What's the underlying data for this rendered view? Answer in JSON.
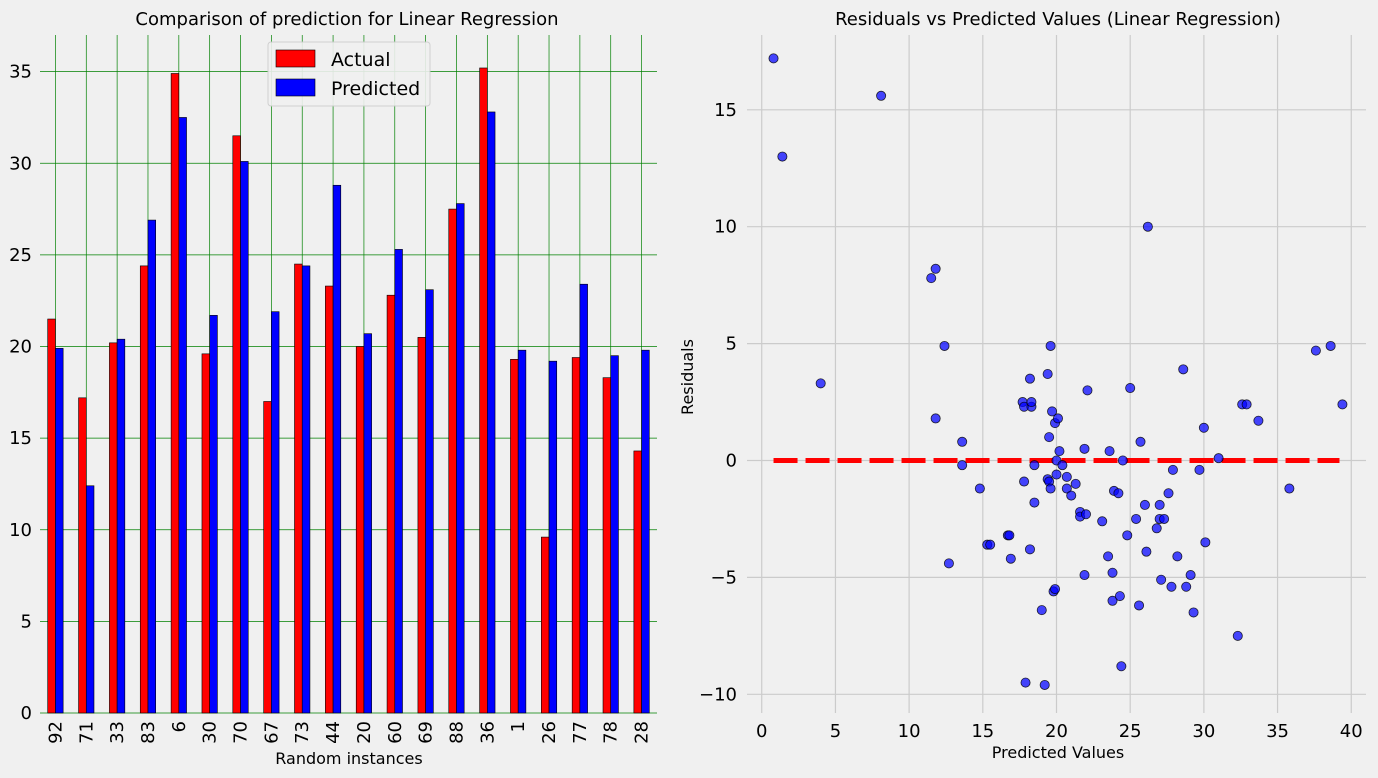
{
  "chart_data": [
    {
      "type": "bar",
      "title": "Comparison of prediction for Linear Regression",
      "xlabel": "Random instances",
      "ylabel": "",
      "categories": [
        "92",
        "71",
        "33",
        "83",
        "6",
        "30",
        "70",
        "67",
        "73",
        "44",
        "20",
        "60",
        "69",
        "88",
        "36",
        "1",
        "26",
        "77",
        "78",
        "28"
      ],
      "series": [
        {
          "name": "Actual",
          "color": "#ff0000",
          "values": [
            21.5,
            17.2,
            20.2,
            24.4,
            34.9,
            19.6,
            31.5,
            17.0,
            24.5,
            23.3,
            20.0,
            22.8,
            20.5,
            27.5,
            35.2,
            19.3,
            9.6,
            19.4,
            18.3,
            14.3
          ]
        },
        {
          "name": "Predicted",
          "color": "#0000ff",
          "values": [
            19.9,
            12.4,
            20.4,
            26.9,
            32.5,
            21.7,
            30.1,
            21.9,
            24.4,
            28.8,
            20.7,
            25.3,
            23.1,
            27.8,
            32.8,
            19.8,
            19.2,
            23.4,
            19.5,
            19.8
          ]
        }
      ],
      "ylim": [
        0,
        37
      ],
      "yticks": [
        0,
        5,
        10,
        15,
        20,
        25,
        30,
        35
      ],
      "grid": true,
      "grid_color": "#008000",
      "legend": "upper center"
    },
    {
      "type": "scatter",
      "title": "Residuals vs Predicted Values (Linear Regression)",
      "xlabel": "Predicted Values",
      "ylabel": "Residuals",
      "xlim": [
        -1,
        41
      ],
      "ylim": [
        -10.8,
        18.2
      ],
      "xticks": [
        0,
        5,
        10,
        15,
        20,
        25,
        30,
        35,
        40
      ],
      "yticks": [
        -10,
        -5,
        0,
        5,
        10,
        15
      ],
      "ytick_labels": [
        "−10",
        "−5",
        "0",
        "5",
        "10",
        "15"
      ],
      "grid": true,
      "point_color": "#0000ff",
      "reference_line": {
        "y": 0,
        "x": [
          0.8,
          39.2
        ],
        "color": "#ff0000",
        "style": "dashed"
      },
      "points": [
        [
          0.8,
          17.2
        ],
        [
          1.4,
          13.0
        ],
        [
          8.1,
          15.6
        ],
        [
          4.0,
          3.3
        ],
        [
          11.5,
          7.8
        ],
        [
          11.8,
          8.2
        ],
        [
          12.4,
          4.9
        ],
        [
          11.8,
          1.8
        ],
        [
          12.7,
          -4.4
        ],
        [
          13.6,
          0.8
        ],
        [
          13.6,
          -0.2
        ],
        [
          14.8,
          -1.2
        ],
        [
          15.3,
          -3.6
        ],
        [
          15.5,
          -3.6
        ],
        [
          16.7,
          -3.2
        ],
        [
          16.9,
          -4.2
        ],
        [
          16.8,
          -3.2
        ],
        [
          17.7,
          2.5
        ],
        [
          17.8,
          2.3
        ],
        [
          17.8,
          -0.9
        ],
        [
          17.9,
          -9.5
        ],
        [
          18.2,
          3.5
        ],
        [
          18.3,
          2.3
        ],
        [
          18.3,
          2.5
        ],
        [
          18.2,
          -3.8
        ],
        [
          18.5,
          -1.8
        ],
        [
          18.5,
          -0.2
        ],
        [
          19.0,
          -6.4
        ],
        [
          19.2,
          -9.6
        ],
        [
          19.4,
          3.7
        ],
        [
          19.5,
          1.0
        ],
        [
          19.4,
          -0.8
        ],
        [
          19.5,
          -0.9
        ],
        [
          19.6,
          -1.2
        ],
        [
          19.6,
          4.9
        ],
        [
          19.7,
          2.1
        ],
        [
          19.8,
          -5.6
        ],
        [
          19.9,
          -5.5
        ],
        [
          19.9,
          1.6
        ],
        [
          20.0,
          -0.6
        ],
        [
          20.1,
          1.8
        ],
        [
          20.0,
          0.0
        ],
        [
          20.2,
          0.4
        ],
        [
          20.4,
          -0.2
        ],
        [
          20.7,
          -0.7
        ],
        [
          20.7,
          -1.2
        ],
        [
          21.0,
          -1.5
        ],
        [
          21.3,
          -1.0
        ],
        [
          21.6,
          -2.2
        ],
        [
          21.6,
          -2.4
        ],
        [
          21.9,
          -4.9
        ],
        [
          21.9,
          0.5
        ],
        [
          22.1,
          3.0
        ],
        [
          22.0,
          -2.3
        ],
        [
          23.1,
          -2.6
        ],
        [
          23.5,
          -4.1
        ],
        [
          23.6,
          0.4
        ],
        [
          23.8,
          -6.0
        ],
        [
          23.8,
          -4.8
        ],
        [
          23.9,
          -1.3
        ],
        [
          24.2,
          -1.4
        ],
        [
          24.3,
          -5.8
        ],
        [
          24.5,
          0.0
        ],
        [
          24.4,
          -8.8
        ],
        [
          24.8,
          -3.2
        ],
        [
          25.0,
          3.1
        ],
        [
          25.4,
          -2.5
        ],
        [
          25.6,
          -6.2
        ],
        [
          25.7,
          0.8
        ],
        [
          26.0,
          -1.9
        ],
        [
          26.1,
          -3.9
        ],
        [
          26.2,
          10.0
        ],
        [
          26.8,
          -2.9
        ],
        [
          27.0,
          -1.9
        ],
        [
          27.0,
          -2.5
        ],
        [
          27.1,
          -5.1
        ],
        [
          27.3,
          -2.5
        ],
        [
          27.6,
          -1.4
        ],
        [
          27.8,
          -5.4
        ],
        [
          27.9,
          -0.4
        ],
        [
          28.2,
          -4.1
        ],
        [
          28.6,
          3.9
        ],
        [
          28.8,
          -5.4
        ],
        [
          29.1,
          -4.9
        ],
        [
          29.3,
          -6.5
        ],
        [
          29.7,
          -0.4
        ],
        [
          30.0,
          1.4
        ],
        [
          30.1,
          -3.5
        ],
        [
          31.0,
          0.1
        ],
        [
          32.3,
          -7.5
        ],
        [
          32.6,
          2.4
        ],
        [
          32.9,
          2.4
        ],
        [
          33.7,
          1.7
        ],
        [
          35.8,
          -1.2
        ],
        [
          37.6,
          4.7
        ],
        [
          38.6,
          4.9
        ],
        [
          39.4,
          2.4
        ]
      ]
    }
  ]
}
